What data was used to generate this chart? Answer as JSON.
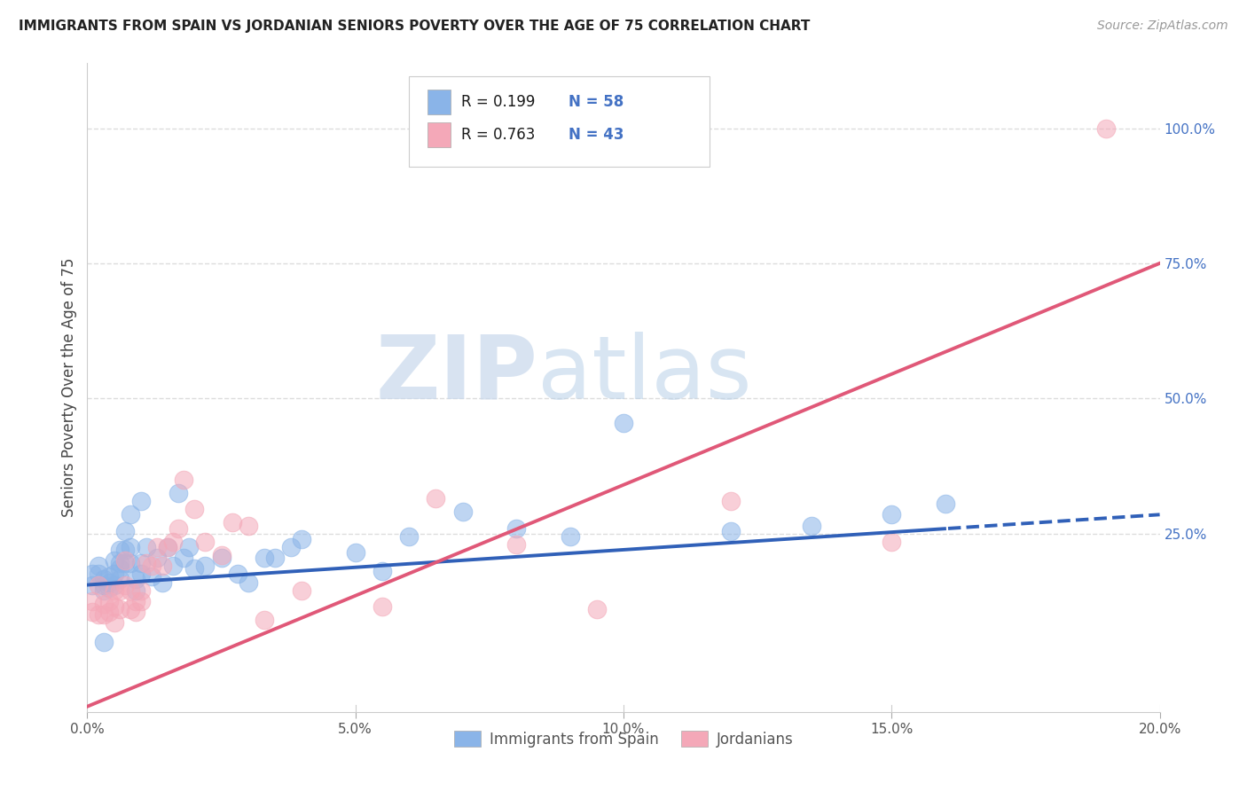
{
  "title": "IMMIGRANTS FROM SPAIN VS JORDANIAN SENIORS POVERTY OVER THE AGE OF 75 CORRELATION CHART",
  "source": "Source: ZipAtlas.com",
  "ylabel": "Seniors Poverty Over the Age of 75",
  "xlim": [
    0.0,
    0.2
  ],
  "ylim": [
    -0.08,
    1.12
  ],
  "xtick_labels": [
    "0.0%",
    "",
    "5.0%",
    "",
    "10.0%",
    "",
    "15.0%",
    "",
    "20.0%"
  ],
  "xtick_vals": [
    0.0,
    0.025,
    0.05,
    0.075,
    0.1,
    0.125,
    0.15,
    0.175,
    0.2
  ],
  "xtick_major_labels": [
    "0.0%",
    "5.0%",
    "10.0%",
    "15.0%",
    "20.0%"
  ],
  "xtick_major_vals": [
    0.0,
    0.05,
    0.1,
    0.15,
    0.2
  ],
  "ytick_right_labels": [
    "100.0%",
    "75.0%",
    "50.0%",
    "25.0%"
  ],
  "ytick_right_vals": [
    1.0,
    0.75,
    0.5,
    0.25
  ],
  "blue_color": "#8ab4e8",
  "pink_color": "#f4a8b8",
  "blue_line_color": "#3060b8",
  "pink_line_color": "#e05878",
  "blue_line_solid_end": 0.16,
  "blue_line_m": 0.65,
  "blue_line_b": 0.155,
  "pink_line_m": 4.1,
  "pink_line_b": -0.07,
  "watermark_zip": "ZIP",
  "watermark_atlas": "atlas",
  "legend_label1": "Immigrants from Spain",
  "legend_label2": "Jordanians",
  "legend_r1": "R = 0.199",
  "legend_n1": "N = 58",
  "legend_r2": "R = 0.763",
  "legend_n2": "N = 43",
  "blue_scatter_x": [
    0.001,
    0.001,
    0.002,
    0.002,
    0.003,
    0.003,
    0.003,
    0.004,
    0.004,
    0.004,
    0.005,
    0.005,
    0.005,
    0.006,
    0.006,
    0.006,
    0.006,
    0.007,
    0.007,
    0.007,
    0.008,
    0.008,
    0.008,
    0.009,
    0.009,
    0.01,
    0.01,
    0.01,
    0.011,
    0.012,
    0.013,
    0.014,
    0.015,
    0.016,
    0.017,
    0.018,
    0.019,
    0.02,
    0.022,
    0.025,
    0.028,
    0.03,
    0.033,
    0.035,
    0.038,
    0.04,
    0.05,
    0.055,
    0.06,
    0.07,
    0.08,
    0.09,
    0.1,
    0.12,
    0.135,
    0.15,
    0.16,
    0.003
  ],
  "blue_scatter_y": [
    0.175,
    0.155,
    0.19,
    0.175,
    0.155,
    0.165,
    0.145,
    0.16,
    0.17,
    0.15,
    0.2,
    0.175,
    0.155,
    0.22,
    0.195,
    0.185,
    0.165,
    0.255,
    0.22,
    0.195,
    0.285,
    0.225,
    0.195,
    0.165,
    0.145,
    0.31,
    0.195,
    0.175,
    0.225,
    0.17,
    0.205,
    0.16,
    0.225,
    0.19,
    0.325,
    0.205,
    0.225,
    0.185,
    0.19,
    0.205,
    0.175,
    0.16,
    0.205,
    0.205,
    0.225,
    0.24,
    0.215,
    0.18,
    0.245,
    0.29,
    0.26,
    0.245,
    0.455,
    0.255,
    0.265,
    0.285,
    0.305,
    0.05
  ],
  "pink_scatter_x": [
    0.001,
    0.001,
    0.002,
    0.002,
    0.003,
    0.003,
    0.004,
    0.004,
    0.005,
    0.005,
    0.005,
    0.006,
    0.006,
    0.007,
    0.007,
    0.008,
    0.008,
    0.009,
    0.009,
    0.01,
    0.01,
    0.011,
    0.012,
    0.013,
    0.014,
    0.015,
    0.016,
    0.017,
    0.018,
    0.02,
    0.022,
    0.025,
    0.027,
    0.03,
    0.033,
    0.04,
    0.055,
    0.065,
    0.08,
    0.095,
    0.12,
    0.15,
    0.19
  ],
  "pink_scatter_y": [
    0.125,
    0.105,
    0.1,
    0.155,
    0.1,
    0.12,
    0.105,
    0.125,
    0.145,
    0.085,
    0.115,
    0.145,
    0.11,
    0.155,
    0.2,
    0.145,
    0.11,
    0.125,
    0.105,
    0.125,
    0.145,
    0.195,
    0.19,
    0.225,
    0.19,
    0.225,
    0.235,
    0.26,
    0.35,
    0.295,
    0.235,
    0.21,
    0.27,
    0.265,
    0.09,
    0.145,
    0.115,
    0.315,
    0.23,
    0.11,
    0.31,
    0.235,
    1.0
  ],
  "background_color": "#ffffff",
  "grid_color": "#dddddd"
}
